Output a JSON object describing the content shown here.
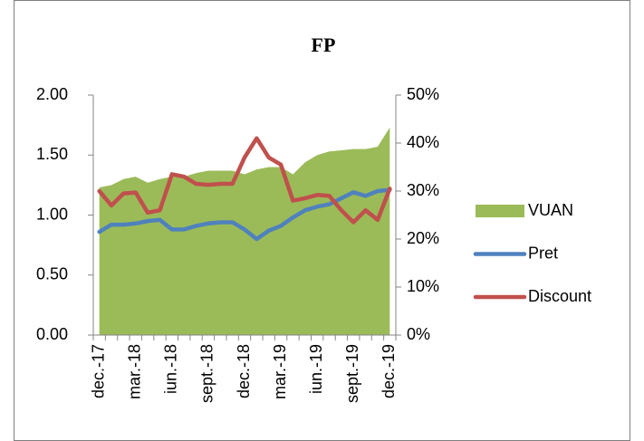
{
  "chart_data": {
    "type": "combo",
    "title": "FP",
    "categories": [
      "dec.-17",
      null,
      null,
      "mar.-18",
      null,
      null,
      "iun.-18",
      null,
      null,
      "sept.-18",
      null,
      null,
      "dec.-18",
      null,
      null,
      "mar.-19",
      null,
      null,
      "iun.-19",
      null,
      null,
      "sept.-19",
      null,
      null,
      "dec.-19"
    ],
    "series": [
      {
        "name": "VUAN",
        "type": "area",
        "color": "#9bbb59",
        "axis": "y",
        "values": [
          1.23,
          1.25,
          1.3,
          1.32,
          1.27,
          1.3,
          1.32,
          1.32,
          1.35,
          1.37,
          1.37,
          1.37,
          1.34,
          1.38,
          1.4,
          1.4,
          1.34,
          1.44,
          1.5,
          1.53,
          1.54,
          1.55,
          1.55,
          1.57,
          1.73
        ]
      },
      {
        "name": "Pret",
        "type": "line",
        "color": "#4f81bd",
        "axis": "y",
        "values": [
          0.86,
          0.92,
          0.92,
          0.93,
          0.95,
          0.96,
          0.88,
          0.88,
          0.91,
          0.93,
          0.94,
          0.94,
          0.88,
          0.8,
          0.87,
          0.91,
          0.98,
          1.04,
          1.07,
          1.09,
          1.14,
          1.19,
          1.16,
          1.2,
          1.21
        ]
      },
      {
        "name": "Discount",
        "type": "line",
        "color": "#c0504d",
        "axis": "y2",
        "values": [
          30,
          27,
          29.5,
          29.7,
          25.5,
          26,
          33.5,
          33,
          31.5,
          31.3,
          31.5,
          31.5,
          37,
          41,
          37,
          35.5,
          28,
          28.5,
          29.2,
          29,
          26,
          23.5,
          26,
          24,
          30.5
        ]
      }
    ],
    "ylim": [
      0,
      2
    ],
    "yticks": [
      {
        "value": 0,
        "label": "0.00"
      },
      {
        "value": 0.5,
        "label": "0.50"
      },
      {
        "value": 1,
        "label": "1.00"
      },
      {
        "value": 1.5,
        "label": "1.50"
      },
      {
        "value": 2,
        "label": "2.00"
      }
    ],
    "y2lim": [
      0,
      50
    ],
    "y2ticks": [
      {
        "value": 0,
        "label": "0%"
      },
      {
        "value": 10,
        "label": "10%"
      },
      {
        "value": 20,
        "label": "20%"
      },
      {
        "value": 30,
        "label": "30%"
      },
      {
        "value": 40,
        "label": "40%"
      },
      {
        "value": 50,
        "label": "50%"
      }
    ],
    "legend": "right"
  }
}
